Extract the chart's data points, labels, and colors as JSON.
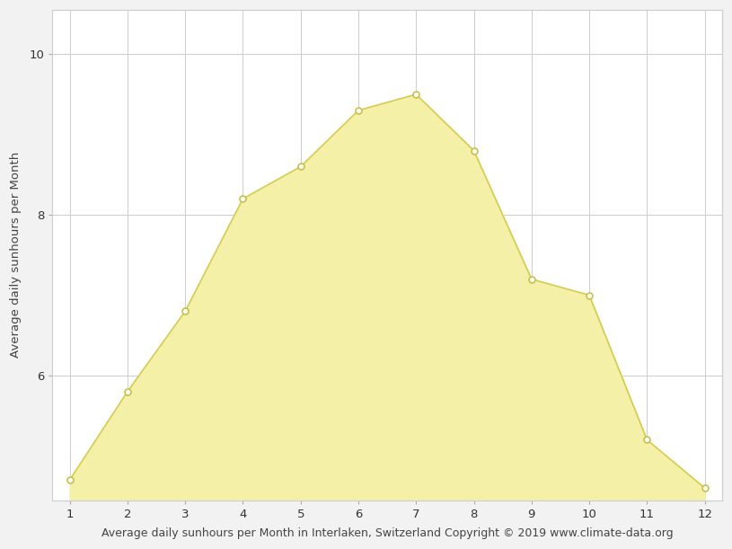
{
  "months": [
    1,
    2,
    3,
    4,
    5,
    6,
    7,
    8,
    9,
    10,
    11,
    12
  ],
  "sunhours": [
    4.7,
    5.8,
    6.8,
    8.2,
    8.6,
    9.3,
    9.5,
    8.8,
    7.2,
    7.0,
    5.2,
    4.6
  ],
  "fill_color": "#f5f0a8",
  "line_color": "#d4cc50",
  "marker_color": "#ffffff",
  "marker_edge_color": "#c8c048",
  "xlabel": "Average daily sunhours per Month in Interlaken, Switzerland Copyright © 2019 www.climate-data.org",
  "ylabel": "Average daily sunhours per Month",
  "xlim": [
    0.7,
    12.3
  ],
  "ylim": [
    4.45,
    10.55
  ],
  "fill_baseline": 4.45,
  "yticks": [
    6,
    8,
    10
  ],
  "xticks": [
    1,
    2,
    3,
    4,
    5,
    6,
    7,
    8,
    9,
    10,
    11,
    12
  ],
  "grid_color": "#cccccc",
  "background_color": "#f2f2f2",
  "plot_background_color": "#ffffff",
  "xlabel_fontsize": 9,
  "ylabel_fontsize": 9.5,
  "tick_labelsize": 9.5
}
